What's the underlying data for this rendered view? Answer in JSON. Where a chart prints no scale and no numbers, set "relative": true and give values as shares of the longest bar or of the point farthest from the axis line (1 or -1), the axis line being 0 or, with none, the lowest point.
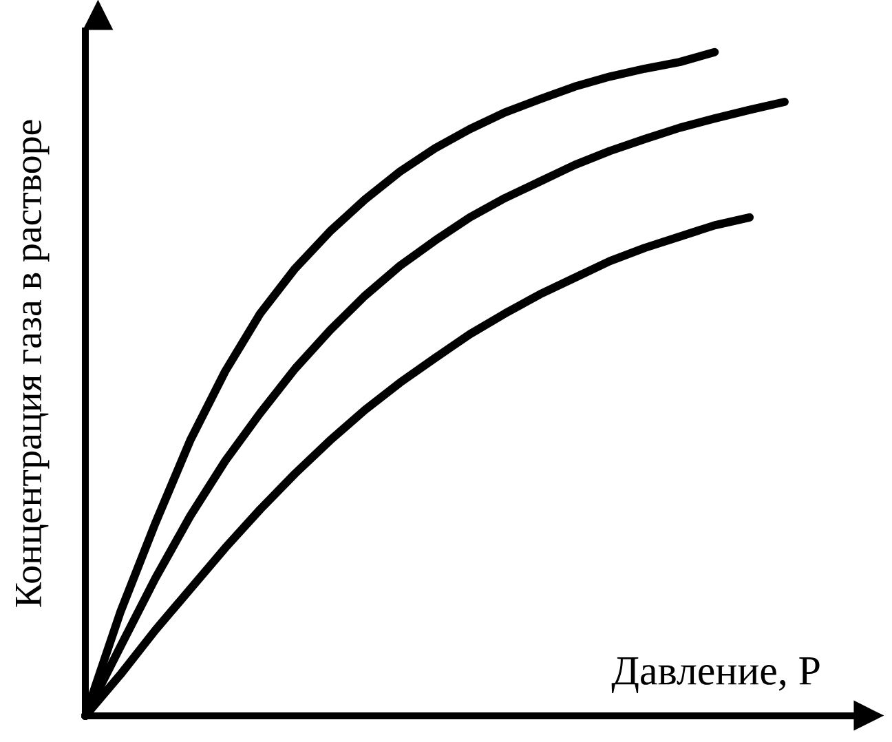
{
  "chart_data": {
    "type": "line",
    "relative": true,
    "xlabel": "Давление, Р",
    "ylabel": "Концентрация газа в растворе",
    "categories": [
      null,
      null,
      null,
      null,
      null,
      null,
      null,
      null,
      null,
      null,
      null,
      null,
      null,
      null,
      null,
      null,
      null,
      null,
      null,
      null,
      null
    ],
    "series": [
      {
        "color": "#000000",
        "values": [
          0,
          0.156,
          0.29,
          0.415,
          0.519,
          0.606,
          0.674,
          0.73,
          0.778,
          0.82,
          0.855,
          0.884,
          0.909,
          0.929,
          0.948,
          0.963,
          0.975,
          0.985,
          1.0,
          null,
          null
        ]
      },
      {
        "color": "#000000",
        "values": [
          0,
          0.104,
          0.207,
          0.301,
          0.384,
          0.456,
          0.523,
          0.581,
          0.633,
          0.678,
          0.716,
          0.751,
          0.78,
          0.805,
          0.83,
          0.851,
          0.869,
          0.886,
          0.9,
          0.913,
          0.925
        ]
      },
      {
        "color": "#000000",
        "values": [
          0,
          0.062,
          0.129,
          0.191,
          0.253,
          0.311,
          0.365,
          0.415,
          0.461,
          0.502,
          0.539,
          0.575,
          0.606,
          0.635,
          0.66,
          0.685,
          0.705,
          0.722,
          0.739,
          0.751,
          null
        ]
      }
    ]
  }
}
